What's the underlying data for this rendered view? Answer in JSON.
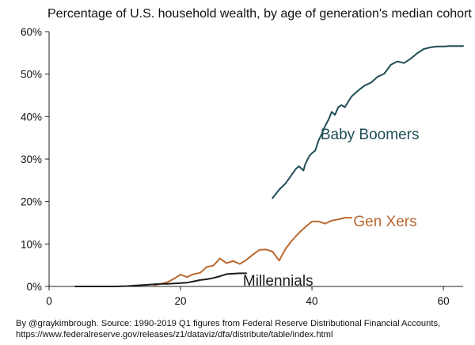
{
  "chart_data": {
    "type": "line",
    "title": "Percentage of U.S. household wealth, by age of generation's median cohort",
    "xlabel": "",
    "ylabel": "",
    "xlim": [
      0,
      63
    ],
    "ylim": [
      0,
      60
    ],
    "x_ticks": [
      "0",
      "20",
      "40",
      "60"
    ],
    "x_tick_values": [
      0,
      20,
      40,
      60
    ],
    "y_ticks": [
      "0%",
      "10%",
      "20%",
      "30%",
      "40%",
      "50%",
      "60%"
    ],
    "y_tick_values": [
      0,
      10,
      20,
      30,
      40,
      50,
      60
    ],
    "grid": false,
    "legend": "none (series labeled inline)",
    "series": [
      {
        "name": "Baby Boomers",
        "color": "#1f4e57",
        "x": [
          34,
          35,
          36,
          37,
          37.5,
          38,
          38.7,
          39,
          39.6,
          40,
          40.5,
          41,
          41.5,
          42,
          42.5,
          43,
          43.5,
          44,
          44.5,
          45,
          46,
          47,
          48,
          49,
          50,
          51,
          52,
          53,
          54,
          55,
          56,
          57,
          58,
          59,
          60,
          61,
          62,
          63
        ],
        "y": [
          20.8,
          22.8,
          24.3,
          26.5,
          27.6,
          28.3,
          27.3,
          28.9,
          30.7,
          31.4,
          32.0,
          34.4,
          35.9,
          37.8,
          39.2,
          41.1,
          40.4,
          42.2,
          42.7,
          42.2,
          44.7,
          46.1,
          47.3,
          48.0,
          49.4,
          50.1,
          52.2,
          53.0,
          52.6,
          53.6,
          54.9,
          55.9,
          56.3,
          56.5,
          56.5,
          56.6,
          56.6,
          56.6
        ],
        "label": "Baby Boomers"
      },
      {
        "name": "Gen Xers",
        "color": "#b9682f",
        "x": [
          16,
          17,
          18,
          19,
          20,
          21,
          22,
          23,
          24,
          25,
          26,
          27,
          28,
          29,
          30,
          31,
          32,
          33,
          34,
          35,
          36,
          37,
          38,
          39,
          40,
          41,
          42,
          43,
          44,
          45,
          46
        ],
        "y": [
          0.3,
          0.6,
          1.0,
          1.8,
          2.8,
          2.2,
          2.9,
          3.2,
          4.6,
          4.9,
          6.6,
          5.5,
          6.0,
          5.3,
          6.2,
          7.5,
          8.6,
          8.7,
          8.2,
          6.1,
          8.9,
          10.9,
          12.6,
          14.0,
          15.3,
          15.3,
          14.8,
          15.5,
          15.8,
          16.2,
          16.2
        ],
        "label": "Gen Xers"
      },
      {
        "name": "Millennials",
        "color": "#1c1c1c",
        "x": [
          4,
          6,
          8,
          10,
          12,
          13,
          14,
          15,
          16,
          17,
          18,
          19,
          20,
          21,
          22,
          23,
          24,
          25,
          26,
          27,
          28,
          29,
          30
        ],
        "y": [
          0.0,
          0.0,
          0.0,
          0.0,
          0.1,
          0.2,
          0.3,
          0.4,
          0.5,
          0.6,
          0.6,
          0.7,
          0.8,
          0.9,
          1.2,
          1.5,
          1.7,
          2.0,
          2.4,
          2.9,
          3.0,
          3.1,
          3.1
        ],
        "label": "Millennials"
      }
    ]
  },
  "source": {
    "line1": "By @graykimbrough. Source: 1990-2019 Q1 figures from Federal Reserve Distributional Financial Accounts,",
    "line2": "https://www.federalreserve.gov/releases/z1/dataviz/dfa/distribute/table/index.html"
  }
}
